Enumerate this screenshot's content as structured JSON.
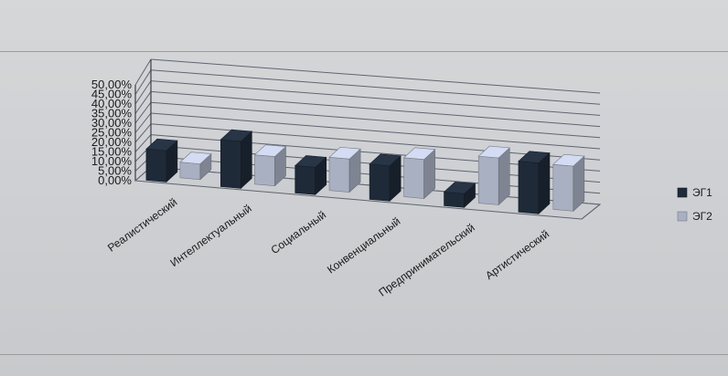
{
  "chart_data": {
    "type": "bar",
    "title": "",
    "xlabel": "",
    "ylabel": "",
    "ylim": [
      0,
      50
    ],
    "y_ticks": [
      "0,00%",
      "5,00%",
      "10,00%",
      "15,00%",
      "20,00%",
      "25,00%",
      "30,00%",
      "35,00%",
      "40,00%",
      "45,00%",
      "50,00%"
    ],
    "categories": [
      "Реалистический",
      "Интеллектуальный",
      "Социальный",
      "Конвенциальный",
      "Предпринимательский",
      "Артистический"
    ],
    "series": [
      {
        "name": "ЭГ1",
        "values": [
          16,
          24,
          14,
          18,
          7,
          26
        ],
        "color": "#1f2a38"
      },
      {
        "name": "ЭГ2",
        "values": [
          8,
          15,
          17,
          20,
          24,
          23
        ],
        "color": "#a9b0c2"
      }
    ],
    "grid": true,
    "legend_position": "right",
    "style": "3d-clustered-column"
  }
}
